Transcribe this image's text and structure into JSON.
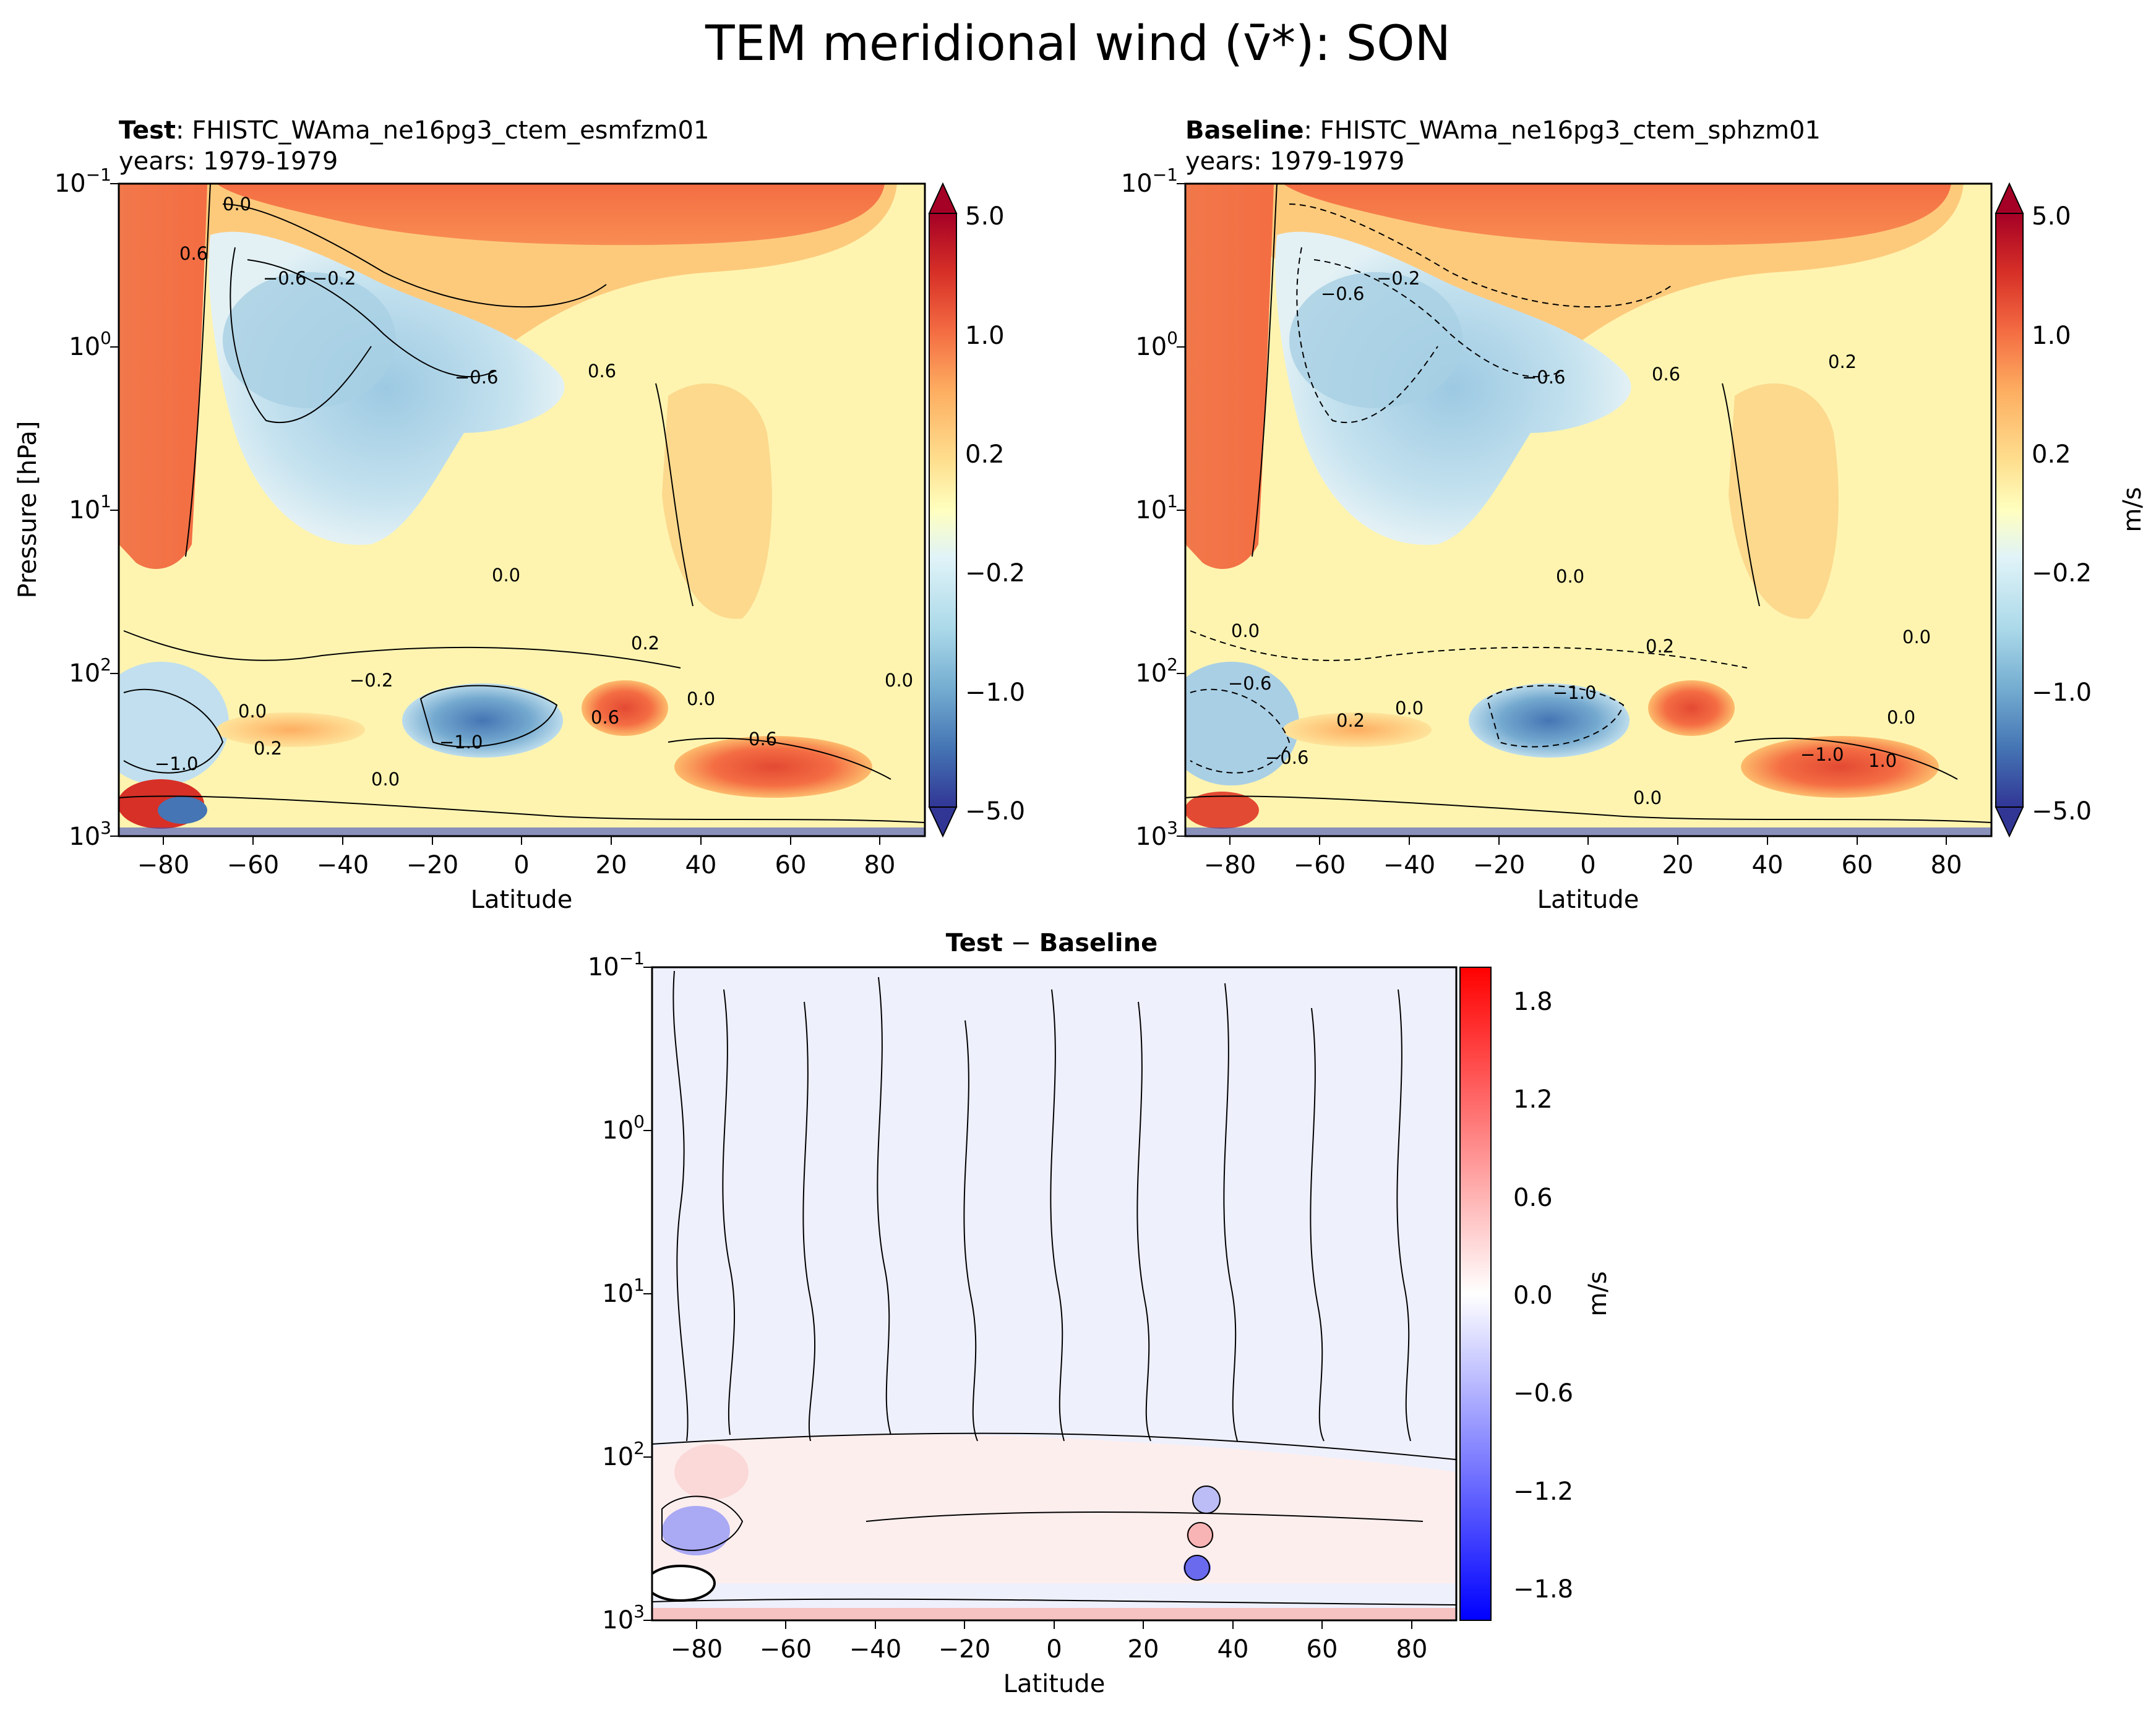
{
  "figure": {
    "title": "TEM meridional wind (v̄*): SON"
  },
  "chart_data": [
    {
      "type": "heatmap",
      "panel": "test",
      "title_bold": "Test",
      "title_sep": ":",
      "case": "FHISTC_WAma_ne16pg3_ctem_esmfzm01",
      "years": "years: 1979-1979",
      "xlabel": "Latitude",
      "ylabel": "Pressure [hPa]",
      "xlim": [
        -90,
        90
      ],
      "ylim": [
        1000,
        0.1
      ],
      "yscale": "log",
      "x_ticks": [
        -80,
        -60,
        -40,
        -20,
        0,
        20,
        40,
        60,
        80
      ],
      "x_tick_labels": [
        "−80",
        "−60",
        "−40",
        "−20",
        "0",
        "20",
        "40",
        "60",
        "80"
      ],
      "y_tick_labels": [
        {
          "base": "10",
          "exp": "−1"
        },
        {
          "base": "10",
          "exp": "0"
        },
        {
          "base": "10",
          "exp": "1"
        },
        {
          "base": "10",
          "exp": "2"
        },
        {
          "base": "10",
          "exp": "3"
        }
      ],
      "contour_labels": [
        "0.0",
        "0.6",
        "−0.6",
        "−0.2",
        "−0.6",
        "0.6",
        "0.0",
        "0.2",
        "−0.2",
        "−1.0",
        "0.6",
        "0.0",
        "0.0",
        "0.2",
        "−1.0",
        "0.0",
        "0.6",
        "0.0"
      ],
      "colorbar": {
        "ticks": [
          "5.0",
          "1.0",
          "0.2",
          "−0.2",
          "−1.0",
          "−5.0"
        ],
        "label": ""
      }
    },
    {
      "type": "heatmap",
      "panel": "baseline",
      "title_bold": "Baseline",
      "title_sep": ":",
      "case": "FHISTC_WAma_ne16pg3_ctem_sphzm01",
      "years": "years: 1979-1979",
      "xlabel": "Latitude",
      "xlim": [
        -90,
        90
      ],
      "ylim": [
        1000,
        0.1
      ],
      "yscale": "log",
      "x_tick_labels": [
        "−80",
        "−60",
        "−40",
        "−20",
        "0",
        "20",
        "40",
        "60",
        "80"
      ],
      "y_tick_labels": [
        {
          "base": "10",
          "exp": "−1"
        },
        {
          "base": "10",
          "exp": "0"
        },
        {
          "base": "10",
          "exp": "1"
        },
        {
          "base": "10",
          "exp": "2"
        },
        {
          "base": "10",
          "exp": "3"
        }
      ],
      "contour_labels": [
        "−0.6",
        "−0.2",
        "−0.6",
        "0.6",
        "0.2",
        "0.0",
        "0.0",
        "0.2",
        "0.0",
        "−0.6",
        "−1.0",
        "0.2",
        "0.0",
        "−0.6",
        "0.0",
        "−1.0",
        "1.0",
        "0.0"
      ],
      "colorbar": {
        "ticks": [
          "5.0",
          "1.0",
          "0.2",
          "−0.2",
          "−1.0",
          "−5.0"
        ],
        "label": "m/s"
      }
    },
    {
      "type": "heatmap",
      "panel": "difference",
      "title_left": "Test",
      "title_op": " − ",
      "title_right": "Baseline",
      "xlabel": "Latitude",
      "xlim": [
        -90,
        90
      ],
      "ylim": [
        1000,
        0.1
      ],
      "yscale": "log",
      "x_tick_labels": [
        "−80",
        "−60",
        "−40",
        "−20",
        "0",
        "20",
        "40",
        "60",
        "80"
      ],
      "y_tick_labels": [
        {
          "base": "10",
          "exp": "−1"
        },
        {
          "base": "10",
          "exp": "0"
        },
        {
          "base": "10",
          "exp": "1"
        },
        {
          "base": "10",
          "exp": "2"
        },
        {
          "base": "10",
          "exp": "3"
        }
      ],
      "colorbar": {
        "ticks": [
          "1.8",
          "1.2",
          "0.6",
          "0.0",
          "−0.6",
          "−1.2",
          "−1.8"
        ],
        "label": "m/s",
        "range": [
          -2.0,
          2.0
        ]
      }
    }
  ]
}
